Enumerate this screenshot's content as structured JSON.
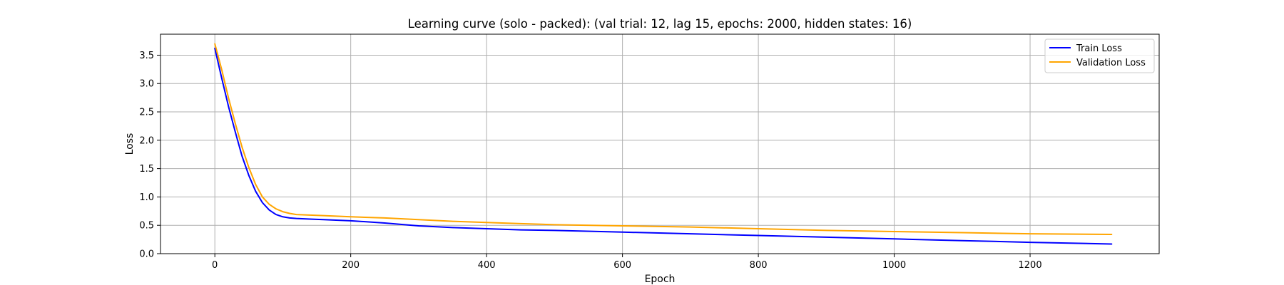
{
  "chart_data": {
    "type": "line",
    "title": "Learning curve (solo - packed): (val trial: 12, lag 15, epochs: 2000, hidden states: 16)",
    "xlabel": "Epoch",
    "ylabel": "Loss",
    "xlim": [
      -80,
      1390
    ],
    "ylim": [
      0.0,
      3.87
    ],
    "xticks": [
      0,
      200,
      400,
      600,
      800,
      1000,
      1200
    ],
    "yticks": [
      0.0,
      0.5,
      1.0,
      1.5,
      2.0,
      2.5,
      3.0,
      3.5
    ],
    "ytick_labels": [
      "0.0",
      "0.5",
      "1.0",
      "1.5",
      "2.0",
      "2.5",
      "3.0",
      "3.5"
    ],
    "grid": true,
    "legend": "top-right",
    "series": [
      {
        "name": "Train Loss",
        "color": "#0000ff",
        "x": [
          0,
          10,
          20,
          30,
          40,
          50,
          60,
          70,
          80,
          90,
          100,
          110,
          120,
          140,
          160,
          200,
          250,
          300,
          350,
          400,
          450,
          500,
          600,
          700,
          800,
          900,
          1000,
          1100,
          1200,
          1320
        ],
        "y": [
          3.62,
          3.1,
          2.6,
          2.15,
          1.72,
          1.38,
          1.1,
          0.9,
          0.77,
          0.69,
          0.65,
          0.63,
          0.62,
          0.61,
          0.6,
          0.58,
          0.54,
          0.49,
          0.46,
          0.44,
          0.42,
          0.41,
          0.38,
          0.35,
          0.32,
          0.29,
          0.26,
          0.23,
          0.2,
          0.17
        ]
      },
      {
        "name": "Validation Loss",
        "color": "#ffa500",
        "x": [
          0,
          10,
          20,
          30,
          40,
          50,
          60,
          70,
          80,
          90,
          100,
          110,
          120,
          140,
          160,
          200,
          250,
          300,
          350,
          400,
          450,
          500,
          600,
          700,
          800,
          900,
          1000,
          1100,
          1200,
          1320
        ],
        "y": [
          3.7,
          3.25,
          2.75,
          2.3,
          1.88,
          1.52,
          1.22,
          1.0,
          0.87,
          0.79,
          0.74,
          0.71,
          0.69,
          0.68,
          0.67,
          0.65,
          0.63,
          0.6,
          0.57,
          0.55,
          0.53,
          0.51,
          0.49,
          0.47,
          0.44,
          0.41,
          0.39,
          0.37,
          0.35,
          0.34
        ]
      }
    ]
  }
}
